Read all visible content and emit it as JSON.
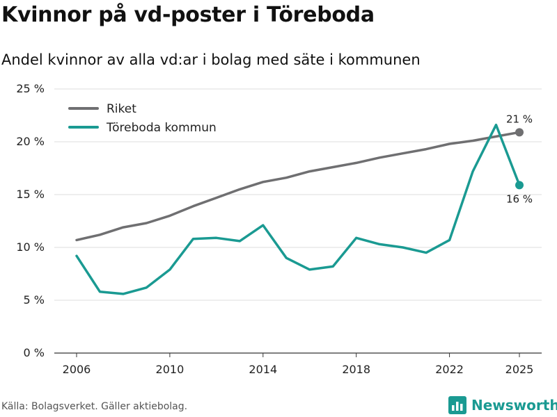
{
  "header": {
    "title": "Kvinnor på vd-poster i Töreboda",
    "subtitle": "Andel kvinnor av alla vd:ar i bolag med säte i kommunen"
  },
  "footer": {
    "source": "Källa: Bolagsverket. Gäller aktiebolag.",
    "brand": "Newsworthy",
    "brand_color": "#1a9a92"
  },
  "chart_data": {
    "type": "line",
    "x": [
      2006,
      2007,
      2008,
      2009,
      2010,
      2011,
      2012,
      2013,
      2014,
      2015,
      2016,
      2017,
      2018,
      2019,
      2020,
      2021,
      2022,
      2023,
      2024,
      2025
    ],
    "series": [
      {
        "name": "Riket",
        "color": "#6f6f71",
        "values": [
          10.7,
          11.2,
          11.9,
          12.3,
          13.0,
          13.9,
          14.7,
          15.5,
          16.2,
          16.6,
          17.2,
          17.6,
          18.0,
          18.5,
          18.9,
          19.3,
          19.8,
          20.1,
          20.5,
          20.9
        ],
        "end_label": "21 %"
      },
      {
        "name": "Töreboda kommun",
        "color": "#1a9a92",
        "values": [
          9.2,
          5.8,
          5.6,
          6.2,
          7.9,
          10.8,
          10.9,
          10.6,
          12.1,
          9.0,
          7.9,
          8.2,
          10.9,
          10.3,
          10.0,
          9.5,
          10.7,
          17.2,
          21.6,
          15.9
        ],
        "end_label": "16 %"
      }
    ],
    "xticks": [
      "2006",
      "2010",
      "2014",
      "2018",
      "2022",
      "2025"
    ],
    "yticks": [
      "0 %",
      "5 %",
      "10 %",
      "15 %",
      "20 %",
      "25 %"
    ],
    "ylim": [
      0,
      25
    ],
    "title": "Kvinnor på vd-poster i Töreboda",
    "xlabel": "",
    "ylabel": "",
    "grid": true,
    "legend_position": "top-left"
  }
}
